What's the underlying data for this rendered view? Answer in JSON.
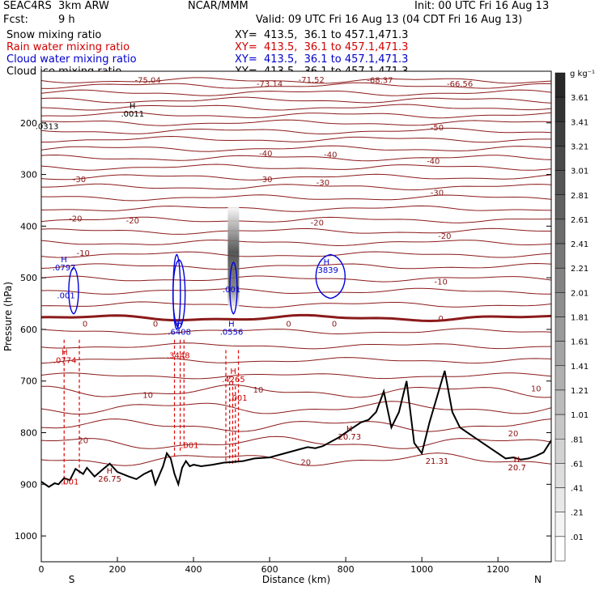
{
  "header": {
    "model": "SEAC4RS  3km ARW",
    "center": "NCAR/MMM",
    "init": "Init: 00 UTC Fri 16 Aug 13",
    "fcst_label": "Fcst:",
    "fcst_value": "9 h",
    "valid": "Valid: 09 UTC Fri 16 Aug 13 (04 CDT Fri 16 Aug 13)",
    "fields": [
      {
        "name": "Snow mixing ratio",
        "xy": "XY=  413.5,  36.1 to 457.1,471.3",
        "color": "#000000"
      },
      {
        "name": "Rain water mixing ratio",
        "xy": "XY=  413.5,  36.1 to 457.1,471.3",
        "color": "#d00000"
      },
      {
        "name": "Cloud water mixing ratio",
        "xy": "XY=  413.5,  36.1 to 457.1,471.3",
        "color": "#0000cc"
      },
      {
        "name": "Cloud ice mixing ratio",
        "xy": "XY=  413.5,  36.1 to 457.1,471.3",
        "color": "#000000"
      }
    ]
  },
  "chart_data": {
    "type": "cross-section",
    "xlabel": "Distance (km)",
    "ylabel": "Pressure (hPa)",
    "xlim": [
      0,
      1340
    ],
    "ylim": [
      1050,
      100
    ],
    "x_ticks": [
      0,
      200,
      400,
      600,
      800,
      1000,
      1200
    ],
    "y_ticks": [
      200,
      300,
      400,
      500,
      600,
      700,
      800,
      900,
      1000
    ],
    "x_end_labels": {
      "left": "S",
      "right": "N"
    },
    "colorbar": {
      "unit": "g kg⁻¹",
      "labels": [
        "3.61",
        "3.41",
        "3.21",
        "3.01",
        "2.81",
        "2.61",
        "2.41",
        "2.21",
        "2.01",
        "1.81",
        "1.61",
        "1.41",
        "1.21",
        "1.01",
        ".81",
        ".61",
        ".41",
        ".21",
        ".01"
      ]
    },
    "temperature_labels": [
      {
        "value": "-75.04",
        "x": 280,
        "p": 118
      },
      {
        "value": "-73.14",
        "x": 600,
        "p": 125
      },
      {
        "value": "-71.52",
        "x": 710,
        "p": 117
      },
      {
        "value": "-68.37",
        "x": 890,
        "p": 118
      },
      {
        "value": "-66.56",
        "x": 1100,
        "p": 125
      },
      {
        "value": "-50",
        "x": 1040,
        "p": 210
      },
      {
        "value": "-40",
        "x": 590,
        "p": 260
      },
      {
        "value": "-40",
        "x": 760,
        "p": 262
      },
      {
        "value": "-40",
        "x": 1030,
        "p": 275
      },
      {
        "value": "-30",
        "x": 100,
        "p": 310
      },
      {
        "value": "-30",
        "x": 590,
        "p": 310
      },
      {
        "value": "-30",
        "x": 740,
        "p": 316
      },
      {
        "value": "-30",
        "x": 1040,
        "p": 336
      },
      {
        "value": "-20",
        "x": 90,
        "p": 386
      },
      {
        "value": "-20",
        "x": 240,
        "p": 390
      },
      {
        "value": "-20",
        "x": 725,
        "p": 394
      },
      {
        "value": "-20",
        "x": 1060,
        "p": 420
      },
      {
        "value": "-10",
        "x": 110,
        "p": 453
      },
      {
        "value": "-10",
        "x": 1050,
        "p": 508
      },
      {
        "value": "0",
        "x": 115,
        "p": 590
      },
      {
        "value": "0",
        "x": 300,
        "p": 590
      },
      {
        "value": "0",
        "x": 650,
        "p": 590
      },
      {
        "value": "0",
        "x": 770,
        "p": 590
      },
      {
        "value": "0",
        "x": 1050,
        "p": 580
      },
      {
        "value": "10",
        "x": 280,
        "p": 728
      },
      {
        "value": "10",
        "x": 570,
        "p": 718
      },
      {
        "value": "10",
        "x": 1300,
        "p": 715
      },
      {
        "value": "20",
        "x": 110,
        "p": 816
      },
      {
        "value": "20",
        "x": 1240,
        "p": 802
      },
      {
        "value": "20",
        "x": 695,
        "p": 858
      }
    ],
    "extrema_labels": [
      {
        "marker": "H",
        "value": ".0011",
        "x": 240,
        "p": 188,
        "color": "#000000"
      },
      {
        "marker": "",
        "value": ".0313",
        "x": 15,
        "p": 212,
        "color": "#000000"
      },
      {
        "marker": "H",
        "value": ".0797",
        "x": 60,
        "p": 486,
        "color": "#0000cc"
      },
      {
        "marker": "",
        "value": ".001",
        "x": 65,
        "p": 540,
        "color": "#0000cc"
      },
      {
        "marker": "",
        "value": ".001",
        "x": 500,
        "p": 528,
        "color": "#0000cc"
      },
      {
        "marker": "H",
        "value": ".6408",
        "x": 363,
        "p": 610,
        "color": "#0000cc"
      },
      {
        "marker": "H",
        "value": ".0556",
        "x": 500,
        "p": 610,
        "color": "#0000cc"
      },
      {
        "marker": "H",
        "value": ".3839",
        "x": 750,
        "p": 490,
        "color": "#0000cc"
      },
      {
        "marker": "H",
        "value": ".0774",
        "x": 62,
        "p": 665,
        "color": "#d00000"
      },
      {
        "marker": "",
        "value": ".3448",
        "x": 360,
        "p": 656,
        "color": "#d00000"
      },
      {
        "marker": "H",
        "value": ".4265",
        "x": 505,
        "p": 702,
        "color": "#d00000"
      },
      {
        "marker": "",
        "value": ".001",
        "x": 518,
        "p": 738,
        "color": "#d00000"
      },
      {
        "marker": "",
        "value": ".001",
        "x": 390,
        "p": 830,
        "color": "#d00000"
      },
      {
        "marker": "",
        "value": ".001",
        "x": 75,
        "p": 900,
        "color": "#d00000"
      },
      {
        "marker": "H",
        "value": "26.75",
        "x": 180,
        "p": 895,
        "color": "#8b0000"
      },
      {
        "marker": "H",
        "value": "20.73",
        "x": 810,
        "p": 813,
        "color": "#8b0000"
      },
      {
        "marker": "",
        "value": "21.31",
        "x": 1040,
        "p": 860,
        "color": "#8b0000"
      },
      {
        "marker": "H",
        "value": "20.7",
        "x": 1250,
        "p": 873,
        "color": "#8b0000"
      }
    ],
    "terrain": {
      "x": [
        0,
        20,
        35,
        45,
        60,
        75,
        90,
        100,
        110,
        120,
        140,
        160,
        180,
        200,
        230,
        250,
        270,
        290,
        300,
        320,
        330,
        340,
        350,
        360,
        370,
        380,
        390,
        400,
        420,
        450,
        480,
        500,
        530,
        560,
        600,
        640,
        680,
        700,
        720,
        740,
        760,
        780,
        800,
        820,
        840,
        860,
        880,
        900,
        920,
        940,
        960,
        980,
        1000,
        1020,
        1040,
        1060,
        1080,
        1100,
        1120,
        1140,
        1160,
        1180,
        1200,
        1220,
        1240,
        1260,
        1280,
        1300,
        1320,
        1340
      ],
      "p": [
        895,
        905,
        898,
        900,
        888,
        892,
        870,
        875,
        880,
        868,
        885,
        872,
        860,
        876,
        885,
        890,
        880,
        873,
        900,
        865,
        840,
        850,
        880,
        900,
        868,
        855,
        865,
        862,
        865,
        862,
        858,
        857,
        855,
        850,
        848,
        840,
        832,
        828,
        830,
        826,
        818,
        810,
        800,
        790,
        780,
        775,
        760,
        720,
        790,
        760,
        700,
        820,
        840,
        780,
        730,
        680,
        760,
        790,
        800,
        810,
        820,
        830,
        840,
        850,
        848,
        852,
        850,
        845,
        838,
        815
      ]
    },
    "snow_shading": {
      "x": 505,
      "p_top": 360,
      "p_bottom": 560
    }
  }
}
